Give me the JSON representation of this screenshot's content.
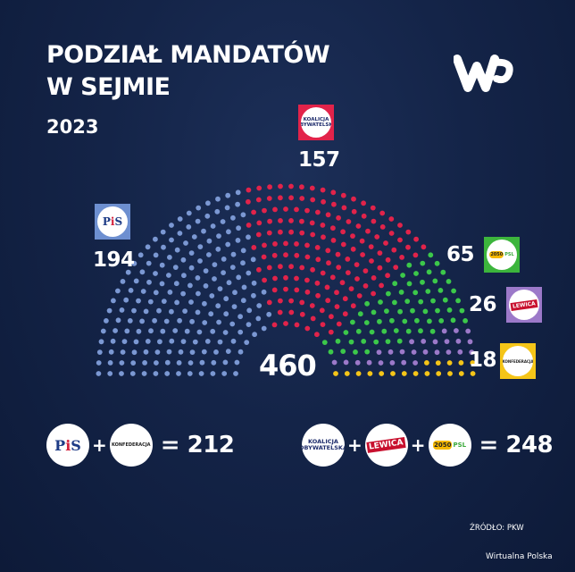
{
  "header": {
    "title_line1": "PODZIAŁ MANDATÓW",
    "title_line2": "W SEJMIE",
    "year": "2023",
    "brand_logo": "wp-logo"
  },
  "total_seats": "460",
  "parties": [
    {
      "id": "pis",
      "name": "PiS",
      "seats": 194,
      "color": "#7b98d3",
      "label": "194",
      "logo_text": "PiS"
    },
    {
      "id": "ko",
      "name": "Koalicja Obywatelska",
      "seats": 157,
      "color": "#e2234a",
      "label": "157",
      "logo_text1": "KOALICJA",
      "logo_text2": "OBYWATELSKA",
      "frame": "#e2234a"
    },
    {
      "id": "td",
      "name": "Trzecia Droga (2050 + PSL)",
      "seats": 65,
      "color": "#3cc84a",
      "label": "65",
      "logo_text1": "2050",
      "logo_text2": "PSL",
      "frame": "#3cb53c"
    },
    {
      "id": "lewica",
      "name": "Lewica",
      "seats": 26,
      "color": "#9c79c9",
      "label": "26",
      "logo_text": "LEWICA",
      "frame": "#9c79c9"
    },
    {
      "id": "konf",
      "name": "Konfederacja",
      "seats": 18,
      "color": "#f5c518",
      "label": "18",
      "logo_text": "KONFEDERACJA",
      "frame": "#f5c518"
    }
  ],
  "coalitions": [
    {
      "members": [
        "PiS",
        "Konfederacja"
      ],
      "result": "= 212"
    },
    {
      "members": [
        "Koalicja Obywatelska",
        "Lewica",
        "2050 PSL"
      ],
      "result": "= 248"
    }
  ],
  "footer": {
    "source": "ŹRÓDŁO: PKW",
    "credit": "Wirtualna Polska"
  },
  "chart_data": {
    "type": "hemicycle",
    "title": "Podział mandatów w Sejmie 2023",
    "categories": [
      "PiS",
      "Koalicja Obywatelska",
      "Trzecia Droga (2050 + PSL)",
      "Lewica",
      "Konfederacja"
    ],
    "values": [
      194,
      157,
      65,
      26,
      18
    ],
    "colors": [
      "#7b98d3",
      "#e2234a",
      "#3cc84a",
      "#9c79c9",
      "#f5c518"
    ],
    "total": 460,
    "annotations": [
      "PiS + Konfederacja = 212",
      "KO + Lewica + 2050/PSL = 248"
    ],
    "source": "PKW"
  }
}
